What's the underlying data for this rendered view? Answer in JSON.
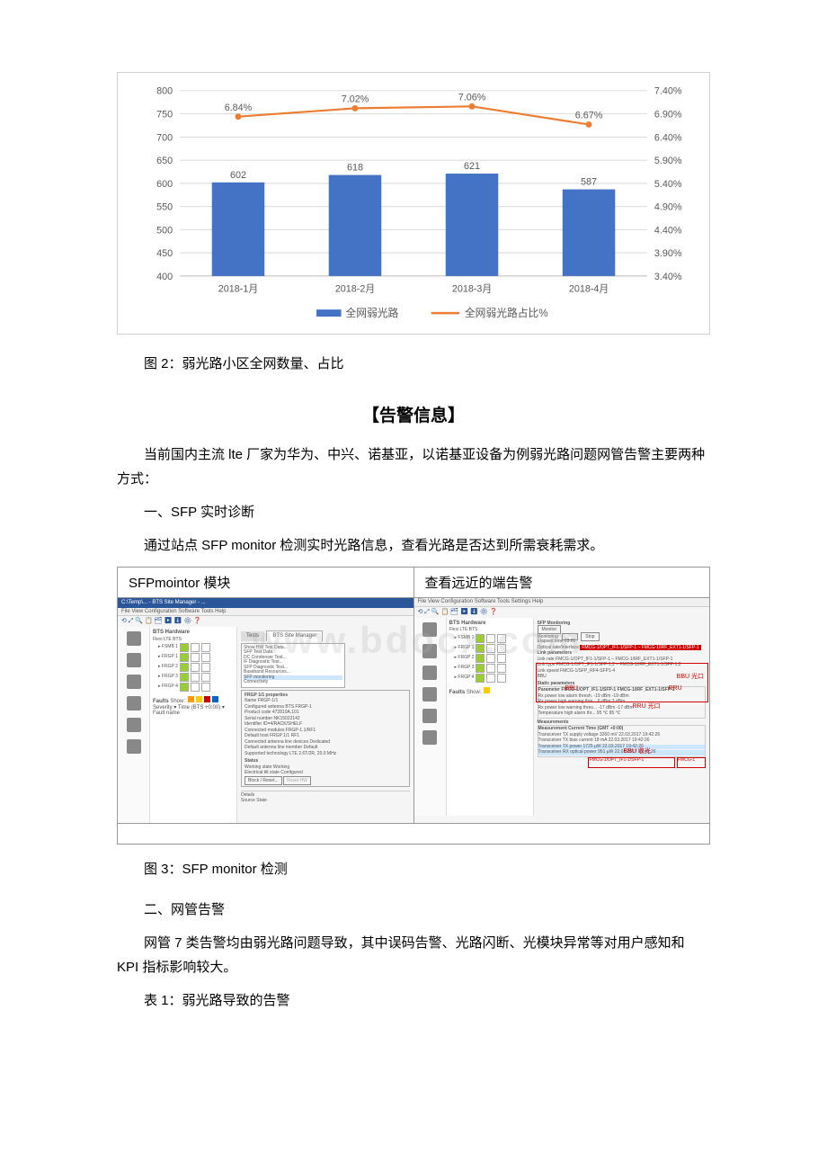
{
  "chart": {
    "type": "bar+line",
    "categories": [
      "2018-1月",
      "2018-2月",
      "2018-3月",
      "2018-4月"
    ],
    "bar_values": [
      602,
      618,
      621,
      587
    ],
    "bar_color": "#4472c4",
    "line_values_pct": [
      6.84,
      7.02,
      7.06,
      6.67
    ],
    "line_color": "#ed7d31",
    "y1_min": 400,
    "y1_max": 800,
    "y1_step": 50,
    "y2_min": 3.4,
    "y2_max": 7.4,
    "y2_step": 0.5,
    "legend_bar": "全网弱光路",
    "legend_line": "全网弱光路占比%",
    "axis_color": "#bfbfbf",
    "grid_color": "#d9d9d9",
    "label_color": "#595959",
    "label_fontsize": 11
  },
  "caption_fig2": "图 2：弱光路小区全网数量、占比",
  "section_alarm": "【告警信息】",
  "para1": "当前国内主流 lte 厂家为华为、中兴、诺基亚，以诺基亚设备为例弱光路问题网管告警主要两种方式：",
  "para2": "一、SFP 实时诊断",
  "para3": "通过站点 SFP monitor 检测实时光路信息，查看光路是否达到所需衰耗需求。",
  "screenshot_table": {
    "header_left": "SFPmointor 模块",
    "header_right": "查看远近的端告警"
  },
  "screenshot_left": {
    "titlebar": "C:\\Temp\\... - BTS Site Manager - ...",
    "menubar": "File  View  Configuration  Software  Tools  Help",
    "toolbar_icons": "⟲ ⤢ 🔍 📋 🗂 ▶ ⬇ ⚙ ❓",
    "tree_title": "BTS Hardware",
    "tree_sub": "Flexi LTE BTS",
    "tree_items": [
      "FSMB 1",
      "FRGP 1",
      "FRGP 2",
      "FRGP 3",
      "FRGP 4"
    ],
    "menu_entries": [
      "Show HW Test Data...",
      "SFP Test Data",
      "DC Condenser Test...",
      "IF Diagnostic Test...",
      "SFP Diagnostic Test...",
      "Baseband Resources...",
      "SFP monitoring",
      "Connectivity"
    ],
    "menu_highlight": "SFP monitoring",
    "tab1": "Tests",
    "tab2": "BTS Site Manager",
    "panel_title": "FRGP 1/1 properties",
    "panel_rows": [
      [
        "Name",
        "FRGP-1/1"
      ],
      [
        "Configured antenna BTS",
        "FRGP-1"
      ],
      [
        "Product code",
        "472810A.101"
      ],
      [
        "Serial number",
        "NK15022142"
      ],
      [
        "Identifier",
        "ID=4/RACK/SHELF"
      ],
      [
        "Connected modules",
        "FRGP-1.1/RF1"
      ],
      [
        "Default host",
        "FRGP 1/1 RF1"
      ],
      [
        "Connected antenna line devices",
        "Dedicated"
      ],
      [
        "Default antenna line member",
        "Default"
      ],
      [
        "Supported technology",
        "LTE 2.6T/2R, 20.0 MHz"
      ]
    ],
    "status_title": "Status",
    "status_rows": [
      [
        "Working state",
        "Working"
      ],
      [
        "Electrical tilt state",
        "Configured"
      ]
    ],
    "buttons": [
      "Block / Reset...",
      "Reset HW"
    ],
    "faults_label": "Faults",
    "faults_show": "Show:",
    "faults_filter": "Severity ▾   Time (BTS +0:00) ▾   Fault name",
    "details_tab": "Details",
    "details_cols": "Source   State"
  },
  "screenshot_right": {
    "menubar": "File  View  Configuration  Software  Tools  Settings  Help",
    "toolbar_icons": "⟲ ⤢ 🔍 📋 🗂 ▶ ⬇ ⚙ ❓",
    "tree_title": "BTS Hardware",
    "tree_sub": "Flexi LTE BTS",
    "panel_title": "SFP Monitoring",
    "monitor_btn": "Monitor",
    "stop_btn": "Stop",
    "monitoring_label": "Monitoring",
    "elapsed": "Elapsed time   03:01",
    "optical_label": "Optical rate/Interface",
    "optical_value": "FMCG-1/OPT_IF1-1/SFP-1 – FMCG-1/IRF_EXT1-1/SFP-1",
    "link_params": "Link parameters",
    "link_rows": [
      [
        "Link rate",
        "FMCG-1/OPT_IF1-1/SFP-1 – FMCG-1/IRF_EXT1-1/SFP-1"
      ],
      [
        "Link type",
        "FMCG-1/OPT_IF1-1/SFP-1,2 – FMCG-1/IRF_EXT1-1/SFP-1,2"
      ],
      [
        "Link speed",
        "FMCG-1/SFP_RF4-SFP1-4"
      ],
      [
        "BBU",
        ""
      ]
    ],
    "static_params": "Static parameters",
    "static_cols": [
      "Parameter",
      "FMCG-1/OPT_IF1-1/SFP-1",
      "FMCG-1/IRF_EXT1-1/SFP-1"
    ],
    "static_rows": [
      [
        "Rx power low alarm thresh.",
        "-19 dBm",
        "-19 dBm"
      ],
      [
        "Rx power high warning thre...",
        "6 dBm",
        "3 dBm"
      ],
      [
        "Rx power low warning thres...",
        "-17 dBm",
        "-17 dBm"
      ],
      [
        "Temperature high alarm thr...",
        "95 ℃",
        "85 ℃"
      ]
    ],
    "meas_title": "Measurements",
    "meas_cols": [
      "Measurement",
      "Current",
      "Time (GMT +0:00)"
    ],
    "meas_rows": [
      [
        "Transceiver TX supply voltage",
        "3260 mV",
        "22.03.2017 19:42:26"
      ],
      [
        "Transceiver TX bias current",
        "18 mA",
        "22.03.2017 19:42:26"
      ],
      [
        "Transceiver TX power",
        "1725 µW",
        "22.03.2017 19:42:26"
      ],
      [
        "Transceiver RX optical power",
        "951 µW",
        "22.03.2017 19:42:26"
      ]
    ],
    "faults_label": "Faults",
    "faults_show": "Show:",
    "annot_bbu_port": "BBU 光口",
    "annot_rru_port": "RRU 光口",
    "annot_rru": "RRU",
    "annot_bbu": "BBU",
    "annot_bbu_receive": "BBU 收光",
    "annot_device": "FMCG-1/OPT_IF1-1/SFP-1",
    "annot_device2": "FMCG-1"
  },
  "caption_fig3": "图 3：SFP monitor 检测",
  "para4": "二、网管告警",
  "para5": "网管 7 类告警均由弱光路问题导致，其中误码告警、光路闪断、光模块异常等对用户感知和 KPI 指标影响较大。",
  "para6": "表 1：弱光路导致的告警",
  "watermark": "www.bdocx.com"
}
